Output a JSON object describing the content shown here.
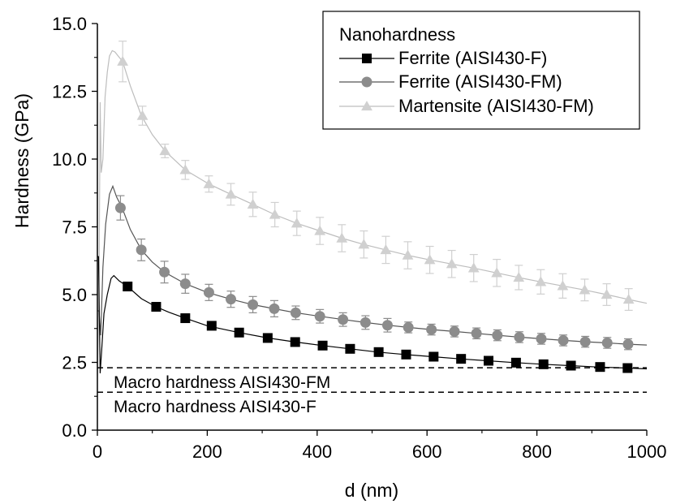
{
  "chart_data": {
    "type": "line",
    "title": "",
    "xlabel": "d (nm)",
    "ylabel": "Hardness (GPa)",
    "xlim": [
      0,
      1000
    ],
    "ylim": [
      0,
      15
    ],
    "x_ticks": [
      0,
      200,
      400,
      600,
      800,
      1000
    ],
    "x_tick_labels": [
      "0",
      "200",
      "400",
      "600",
      "800",
      "1000"
    ],
    "y_ticks": [
      0,
      2.5,
      5,
      7.5,
      10,
      12.5,
      15
    ],
    "y_tick_labels": [
      "0.0",
      "2.5",
      "5.0",
      "7.5",
      "10.0",
      "12.5",
      "15.0"
    ],
    "grid": false,
    "legend": {
      "title": "Nanohardness",
      "position": "top-right",
      "entries": [
        "Ferrite (AISI430-F)",
        "Ferrite (AISI430-FM)",
        "Martensite (AISI430-FM)"
      ]
    },
    "series": [
      {
        "name": "Ferrite (AISI430-F)",
        "marker": "square",
        "color": "#000000",
        "line_color": "#000000",
        "curve": [
          [
            0,
            6.4
          ],
          [
            2,
            6.4
          ],
          [
            5,
            2.1
          ],
          [
            8,
            3.0
          ],
          [
            12,
            4.3
          ],
          [
            18,
            5.0
          ],
          [
            25,
            5.6
          ],
          [
            30,
            5.7
          ],
          [
            40,
            5.5
          ],
          [
            55,
            5.3
          ],
          [
            80,
            4.85
          ],
          [
            107,
            4.55
          ],
          [
            130,
            4.35
          ],
          [
            160,
            4.13
          ],
          [
            200,
            3.85
          ],
          [
            258,
            3.6
          ],
          [
            310,
            3.4
          ],
          [
            360,
            3.25
          ],
          [
            410,
            3.12
          ],
          [
            460,
            3.0
          ],
          [
            510,
            2.88
          ],
          [
            560,
            2.79
          ],
          [
            610,
            2.71
          ],
          [
            660,
            2.63
          ],
          [
            710,
            2.56
          ],
          [
            760,
            2.49
          ],
          [
            810,
            2.43
          ],
          [
            860,
            2.38
          ],
          [
            910,
            2.33
          ],
          [
            965,
            2.29
          ],
          [
            1000,
            2.26
          ]
        ],
        "x": [
          55,
          107,
          160,
          208,
          258,
          310,
          360,
          410,
          460,
          512,
          562,
          612,
          662,
          712,
          762,
          812,
          862,
          915,
          965
        ],
        "y": [
          5.3,
          4.55,
          4.13,
          3.85,
          3.6,
          3.4,
          3.25,
          3.12,
          3.0,
          2.88,
          2.79,
          2.71,
          2.63,
          2.56,
          2.49,
          2.43,
          2.38,
          2.33,
          2.29
        ],
        "error": [
          0.05,
          0.05,
          0.05,
          0.05,
          0.05,
          0.05,
          0.05,
          0.05,
          0.05,
          0.05,
          0.05,
          0.05,
          0.05,
          0.05,
          0.1,
          0.1,
          0.1,
          0.1,
          0.1
        ]
      },
      {
        "name": "Ferrite (AISI430-FM)",
        "marker": "circle",
        "color": "#8c8c8c",
        "line_color": "#555555",
        "curve": [
          [
            0,
            4.4
          ],
          [
            3,
            4.4
          ],
          [
            6,
            3.5
          ],
          [
            10,
            6.0
          ],
          [
            15,
            7.6
          ],
          [
            22,
            8.7
          ],
          [
            28,
            9.0
          ],
          [
            35,
            8.6
          ],
          [
            45,
            8.2
          ],
          [
            60,
            7.4
          ],
          [
            80,
            6.65
          ],
          [
            100,
            6.2
          ],
          [
            122,
            5.83
          ],
          [
            160,
            5.4
          ],
          [
            200,
            5.08
          ],
          [
            243,
            4.83
          ],
          [
            283,
            4.63
          ],
          [
            322,
            4.48
          ],
          [
            361,
            4.33
          ],
          [
            405,
            4.2
          ],
          [
            447,
            4.08
          ],
          [
            488,
            3.97
          ],
          [
            528,
            3.87
          ],
          [
            566,
            3.79
          ],
          [
            608,
            3.71
          ],
          [
            650,
            3.64
          ],
          [
            690,
            3.57
          ],
          [
            728,
            3.5
          ],
          [
            768,
            3.43
          ],
          [
            808,
            3.37
          ],
          [
            848,
            3.31
          ],
          [
            888,
            3.26
          ],
          [
            928,
            3.22
          ],
          [
            966,
            3.17
          ],
          [
            1000,
            3.14
          ]
        ],
        "x": [
          42,
          80,
          122,
          160,
          203,
          243,
          283,
          322,
          361,
          405,
          447,
          488,
          528,
          566,
          608,
          650,
          690,
          728,
          768,
          808,
          848,
          888,
          928,
          966
        ],
        "y": [
          8.2,
          6.65,
          5.83,
          5.4,
          5.08,
          4.83,
          4.63,
          4.48,
          4.33,
          4.2,
          4.08,
          3.97,
          3.87,
          3.79,
          3.71,
          3.64,
          3.57,
          3.5,
          3.43,
          3.37,
          3.31,
          3.26,
          3.22,
          3.17
        ],
        "error": [
          0.45,
          0.4,
          0.4,
          0.35,
          0.3,
          0.3,
          0.3,
          0.3,
          0.25,
          0.25,
          0.25,
          0.25,
          0.25,
          0.2,
          0.2,
          0.2,
          0.2,
          0.2,
          0.2,
          0.2,
          0.2,
          0.2,
          0.2,
          0.2
        ]
      },
      {
        "name": "Martensite (AISI430-FM)",
        "marker": "triangle",
        "color": "#d0d0d0",
        "line_color": "#bdbdbd",
        "curve": [
          [
            0,
            2.0
          ],
          [
            3,
            5.0
          ],
          [
            5,
            12.1
          ],
          [
            7,
            9.5
          ],
          [
            10,
            10.0
          ],
          [
            14,
            12.3
          ],
          [
            18,
            13.2
          ],
          [
            22,
            13.8
          ],
          [
            27,
            14.0
          ],
          [
            32,
            13.95
          ],
          [
            38,
            13.8
          ],
          [
            46,
            13.6
          ],
          [
            60,
            12.7
          ],
          [
            80,
            11.6
          ],
          [
            100,
            10.9
          ],
          [
            123,
            10.3
          ],
          [
            160,
            9.6
          ],
          [
            203,
            9.08
          ],
          [
            243,
            8.7
          ],
          [
            283,
            8.33
          ],
          [
            323,
            7.95
          ],
          [
            363,
            7.63
          ],
          [
            405,
            7.35
          ],
          [
            445,
            7.08
          ],
          [
            485,
            6.85
          ],
          [
            525,
            6.65
          ],
          [
            565,
            6.45
          ],
          [
            605,
            6.28
          ],
          [
            645,
            6.13
          ],
          [
            685,
            5.98
          ],
          [
            727,
            5.8
          ],
          [
            767,
            5.63
          ],
          [
            807,
            5.47
          ],
          [
            847,
            5.32
          ],
          [
            887,
            5.17
          ],
          [
            927,
            5.0
          ],
          [
            967,
            4.82
          ],
          [
            1000,
            4.68
          ]
        ],
        "x": [
          46,
          82,
          123,
          160,
          203,
          243,
          283,
          323,
          363,
          405,
          445,
          485,
          525,
          565,
          605,
          645,
          685,
          727,
          767,
          807,
          847,
          887,
          927,
          967
        ],
        "y": [
          13.6,
          11.6,
          10.3,
          9.6,
          9.08,
          8.7,
          8.33,
          7.95,
          7.63,
          7.35,
          7.08,
          6.85,
          6.65,
          6.45,
          6.28,
          6.13,
          5.98,
          5.8,
          5.63,
          5.47,
          5.32,
          5.17,
          5.0,
          4.82
        ],
        "error": [
          0.75,
          0.35,
          0.25,
          0.35,
          0.3,
          0.4,
          0.45,
          0.45,
          0.45,
          0.5,
          0.5,
          0.5,
          0.5,
          0.5,
          0.5,
          0.5,
          0.5,
          0.5,
          0.45,
          0.45,
          0.45,
          0.4,
          0.4,
          0.4
        ]
      }
    ],
    "reference_lines": [
      {
        "label": "Macro hardness AISI430-FM",
        "y": 2.3,
        "style": "dashed"
      },
      {
        "label": "Macro hardness AISI430-F",
        "y": 1.4,
        "style": "dashed"
      }
    ]
  }
}
